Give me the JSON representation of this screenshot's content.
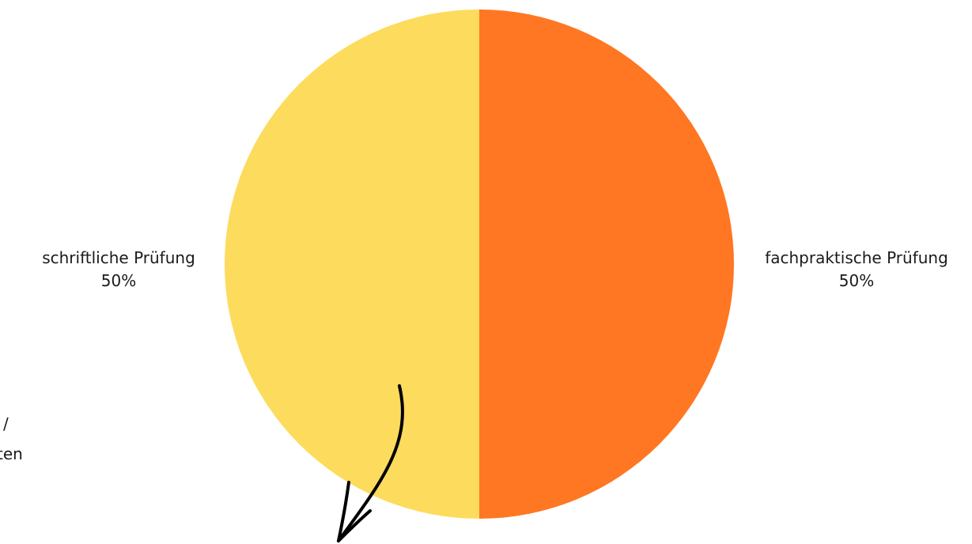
{
  "chart_data": {
    "type": "pie",
    "slices": [
      {
        "name": "fachpraktische Prüfung",
        "value": 50,
        "label": "50%",
        "color": "#FF7722"
      },
      {
        "name": "schriftliche Prüfung",
        "value": 50,
        "label": "50%",
        "color": "#FDDB5C"
      }
    ],
    "title": "",
    "legend": "none"
  },
  "annotation": {
    "partial_line_1": "/",
    "partial_line_2": "ten",
    "arrow_icon": "hand-drawn-arrow-icon",
    "arrow_color": "#000000"
  }
}
